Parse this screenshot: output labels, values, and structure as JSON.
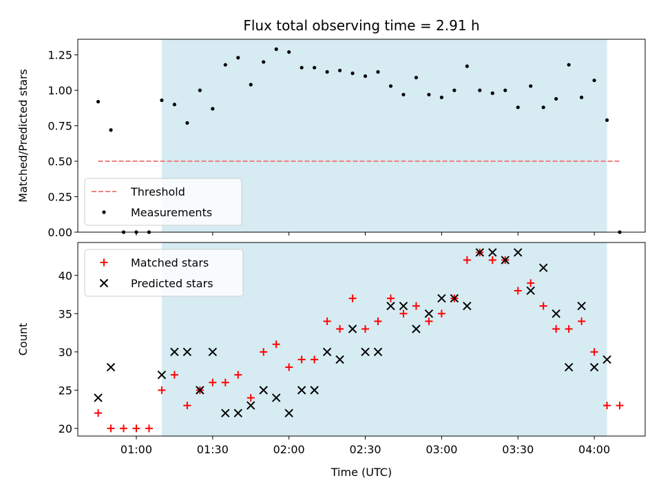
{
  "chart_data": [
    {
      "type": "scatter",
      "title": "Flux total observing time = 2.91 h",
      "xlabel": "",
      "ylabel": "Matched/Predicted stars",
      "ylim": [
        0,
        1.36
      ],
      "yticks": [
        0.0,
        0.25,
        0.5,
        0.75,
        1.0,
        1.25
      ],
      "ytick_labels": [
        "0.00",
        "0.25",
        "0.50",
        "0.75",
        "1.00",
        "1.25"
      ],
      "shaded_span": {
        "start": "01:10",
        "end": "04:05",
        "color": "#add8e6"
      },
      "threshold": {
        "name": "Threshold",
        "value": 0.5,
        "start": "00:45",
        "end": "04:10",
        "color": "#f08080"
      },
      "legend": {
        "position": "lower-left",
        "entries": [
          "Threshold",
          "Measurements"
        ]
      },
      "series": [
        {
          "name": "Measurements",
          "marker": "dot",
          "color": "#000000",
          "points": [
            [
              "00:45",
              0.92
            ],
            [
              "00:50",
              0.72
            ],
            [
              "00:55",
              0.0
            ],
            [
              "01:00",
              0.0
            ],
            [
              "01:05",
              0.0
            ],
            [
              "01:10",
              0.93
            ],
            [
              "01:15",
              0.9
            ],
            [
              "01:20",
              0.77
            ],
            [
              "01:25",
              1.0
            ],
            [
              "01:30",
              0.87
            ],
            [
              "01:35",
              1.18
            ],
            [
              "01:40",
              1.23
            ],
            [
              "01:45",
              1.04
            ],
            [
              "01:50",
              1.2
            ],
            [
              "01:55",
              1.29
            ],
            [
              "02:00",
              1.27
            ],
            [
              "02:05",
              1.16
            ],
            [
              "02:10",
              1.16
            ],
            [
              "02:15",
              1.13
            ],
            [
              "02:20",
              1.14
            ],
            [
              "02:25",
              1.12
            ],
            [
              "02:30",
              1.1
            ],
            [
              "02:35",
              1.13
            ],
            [
              "02:40",
              1.03
            ],
            [
              "02:45",
              0.97
            ],
            [
              "02:50",
              1.09
            ],
            [
              "02:55",
              0.97
            ],
            [
              "03:00",
              0.95
            ],
            [
              "03:05",
              1.0
            ],
            [
              "03:10",
              1.17
            ],
            [
              "03:15",
              1.0
            ],
            [
              "03:20",
              0.98
            ],
            [
              "03:25",
              1.0
            ],
            [
              "03:30",
              0.88
            ],
            [
              "03:35",
              1.03
            ],
            [
              "03:40",
              0.88
            ],
            [
              "03:45",
              0.94
            ],
            [
              "03:50",
              1.18
            ],
            [
              "03:55",
              0.95
            ],
            [
              "04:00",
              1.07
            ],
            [
              "04:05",
              0.79
            ],
            [
              "04:10",
              0.0
            ]
          ]
        }
      ]
    },
    {
      "type": "scatter",
      "title": "",
      "xlabel": "Time (UTC)",
      "ylabel": "Count",
      "xlim": [
        "00:37",
        "04:20"
      ],
      "xticks": [
        "01:00",
        "01:30",
        "02:00",
        "02:30",
        "03:00",
        "03:30",
        "04:00"
      ],
      "ylim": [
        19,
        44.3
      ],
      "yticks": [
        20,
        25,
        30,
        35,
        40
      ],
      "shaded_span": {
        "start": "01:10",
        "end": "04:05",
        "color": "#add8e6"
      },
      "legend": {
        "position": "top-left",
        "entries": [
          "Matched stars",
          "Predicted stars"
        ]
      },
      "series": [
        {
          "name": "Matched stars",
          "marker": "plus",
          "color": "#ff0000",
          "points": [
            [
              "00:45",
              22
            ],
            [
              "00:50",
              20
            ],
            [
              "00:55",
              20
            ],
            [
              "01:00",
              20
            ],
            [
              "01:05",
              20
            ],
            [
              "01:10",
              25
            ],
            [
              "01:15",
              27
            ],
            [
              "01:20",
              23
            ],
            [
              "01:25",
              25
            ],
            [
              "01:30",
              26
            ],
            [
              "01:35",
              26
            ],
            [
              "01:40",
              27
            ],
            [
              "01:45",
              24
            ],
            [
              "01:50",
              30
            ],
            [
              "01:55",
              31
            ],
            [
              "02:00",
              28
            ],
            [
              "02:05",
              29
            ],
            [
              "02:10",
              29
            ],
            [
              "02:15",
              34
            ],
            [
              "02:20",
              33
            ],
            [
              "02:25",
              37
            ],
            [
              "02:30",
              33
            ],
            [
              "02:35",
              34
            ],
            [
              "02:40",
              37
            ],
            [
              "02:45",
              35
            ],
            [
              "02:50",
              36
            ],
            [
              "02:55",
              34
            ],
            [
              "03:00",
              35
            ],
            [
              "03:05",
              37
            ],
            [
              "03:10",
              42
            ],
            [
              "03:15",
              43
            ],
            [
              "03:20",
              42
            ],
            [
              "03:25",
              42
            ],
            [
              "03:30",
              38
            ],
            [
              "03:35",
              39
            ],
            [
              "03:40",
              36
            ],
            [
              "03:45",
              33
            ],
            [
              "03:50",
              33
            ],
            [
              "03:55",
              34
            ],
            [
              "04:00",
              30
            ],
            [
              "04:05",
              23
            ],
            [
              "04:10",
              23
            ]
          ]
        },
        {
          "name": "Predicted stars",
          "marker": "x",
          "color": "#000000",
          "points": [
            [
              "00:45",
              24
            ],
            [
              "00:50",
              28
            ],
            [
              "01:10",
              27
            ],
            [
              "01:15",
              30
            ],
            [
              "01:20",
              30
            ],
            [
              "01:25",
              25
            ],
            [
              "01:30",
              30
            ],
            [
              "01:35",
              22
            ],
            [
              "01:40",
              22
            ],
            [
              "01:45",
              23
            ],
            [
              "01:50",
              25
            ],
            [
              "01:55",
              24
            ],
            [
              "02:00",
              22
            ],
            [
              "02:05",
              25
            ],
            [
              "02:10",
              25
            ],
            [
              "02:15",
              30
            ],
            [
              "02:20",
              29
            ],
            [
              "02:25",
              33
            ],
            [
              "02:30",
              30
            ],
            [
              "02:35",
              30
            ],
            [
              "02:40",
              36
            ],
            [
              "02:45",
              36
            ],
            [
              "02:50",
              33
            ],
            [
              "02:55",
              35
            ],
            [
              "03:00",
              37
            ],
            [
              "03:05",
              37
            ],
            [
              "03:10",
              36
            ],
            [
              "03:15",
              43
            ],
            [
              "03:20",
              43
            ],
            [
              "03:25",
              42
            ],
            [
              "03:30",
              43
            ],
            [
              "03:35",
              38
            ],
            [
              "03:40",
              41
            ],
            [
              "03:45",
              35
            ],
            [
              "03:50",
              28
            ],
            [
              "03:55",
              36
            ],
            [
              "04:00",
              28
            ],
            [
              "04:05",
              29
            ]
          ]
        }
      ]
    }
  ]
}
